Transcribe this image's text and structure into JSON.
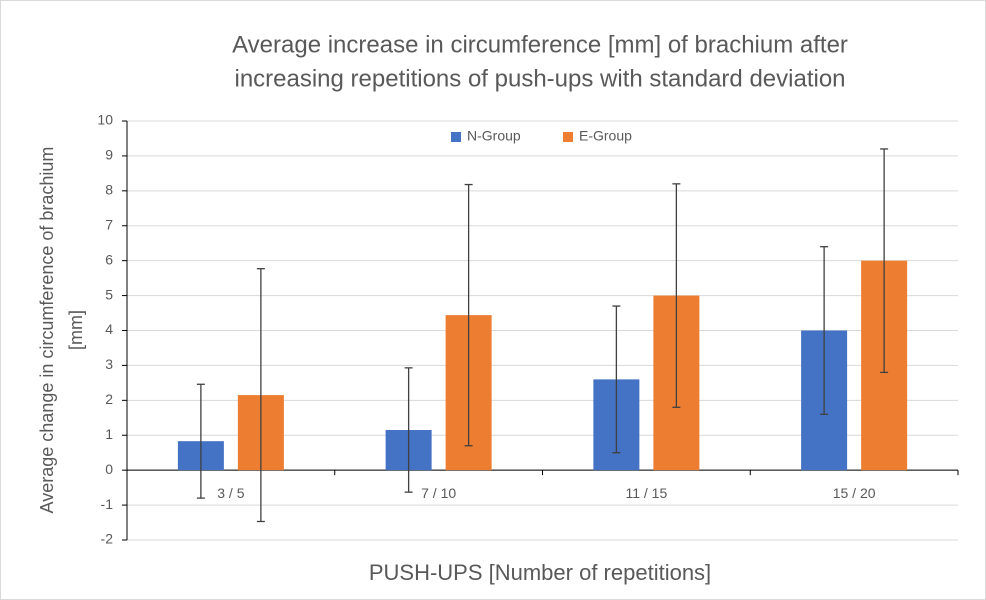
{
  "chart_data": {
    "type": "bar",
    "title": [
      "Average increase in circumference [mm] of brachium after",
      "increasing repetitions of push-ups with standard deviation"
    ],
    "x_label": "PUSH-UPS [Number of repetitions]",
    "y_label": [
      "Average change in circumference of brachium",
      "[mm]"
    ],
    "categories": [
      "3 / 5",
      "7 / 10",
      "11 / 15",
      "15 / 20"
    ],
    "series": [
      {
        "name": "N-Group",
        "color": "#4472c4",
        "values": [
          0.83,
          1.15,
          2.6,
          4.0
        ],
        "errors": [
          1.63,
          1.78,
          2.1,
          2.4
        ]
      },
      {
        "name": "E-Group",
        "color": "#ed7d31",
        "values": [
          2.15,
          4.44,
          5.0,
          6.0
        ],
        "errors": [
          3.62,
          3.74,
          3.2,
          3.2
        ]
      }
    ],
    "ylim": [
      -2,
      10
    ],
    "yticks": [
      -2,
      -1,
      0,
      1,
      2,
      3,
      4,
      5,
      6,
      7,
      8,
      9,
      10
    ],
    "grid": true,
    "legend": "top"
  }
}
